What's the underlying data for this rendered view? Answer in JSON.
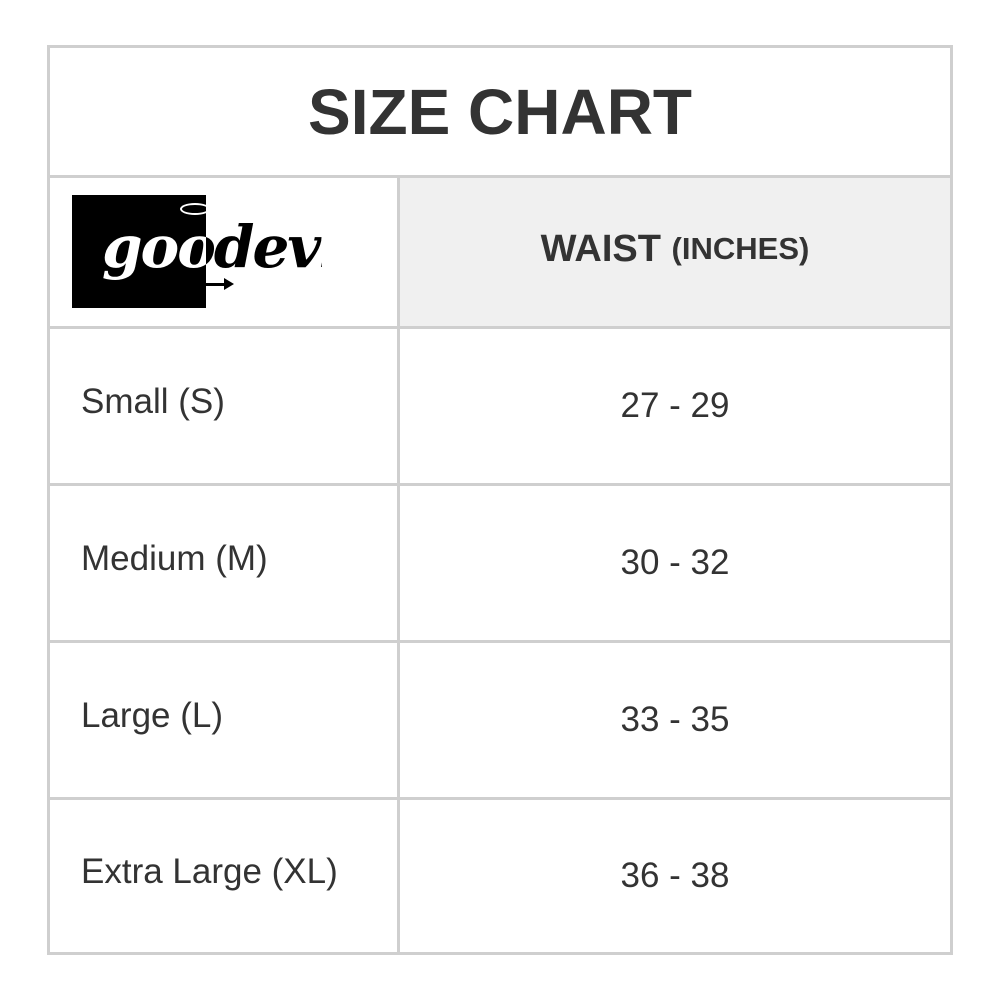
{
  "title": "SIZE CHART",
  "logo": {
    "text": "goodevil"
  },
  "header": {
    "measure": "WAIST",
    "unit": "(INCHES)"
  },
  "rows": [
    {
      "size": "Small (S)",
      "waist": "27 - 29"
    },
    {
      "size": "Medium (M)",
      "waist": "30 - 32"
    },
    {
      "size": "Large (L)",
      "waist": "33 - 35"
    },
    {
      "size": "Extra Large (XL)",
      "waist": "36 - 38"
    }
  ]
}
